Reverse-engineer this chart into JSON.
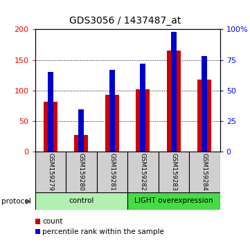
{
  "title": "GDS3056 / 1437487_at",
  "samples": [
    "GSM159279",
    "GSM159280",
    "GSM159281",
    "GSM159282",
    "GSM159283",
    "GSM159284"
  ],
  "counts": [
    82,
    28,
    93,
    102,
    165,
    118
  ],
  "percentiles": [
    65,
    35,
    67,
    72,
    98,
    78
  ],
  "bar_color": "#cc0000",
  "percentile_color": "#0000cc",
  "ylim_left": [
    0,
    200
  ],
  "ylim_right": [
    0,
    100
  ],
  "yticks_left": [
    0,
    50,
    100,
    150,
    200
  ],
  "yticks_right": [
    0,
    25,
    50,
    75,
    100
  ],
  "yticklabels_left": [
    "0",
    "50",
    "100",
    "150",
    "200"
  ],
  "yticklabels_right": [
    "0",
    "25",
    "50",
    "75",
    "100%"
  ],
  "protocol_groups": [
    {
      "label": "control",
      "start": 0,
      "end": 3,
      "color": "#b2f0b2"
    },
    {
      "label": "LIGHT overexpression",
      "start": 3,
      "end": 6,
      "color": "#44dd44"
    }
  ],
  "legend_count_label": "count",
  "legend_percentile_label": "percentile rank within the sample",
  "protocol_label": "protocol",
  "sample_bg_color": "#d0d0d0",
  "bar_width": 0.45,
  "blue_bar_width": 0.18,
  "title_fontsize": 10,
  "tick_fontsize": 8,
  "label_fontsize": 7.5
}
